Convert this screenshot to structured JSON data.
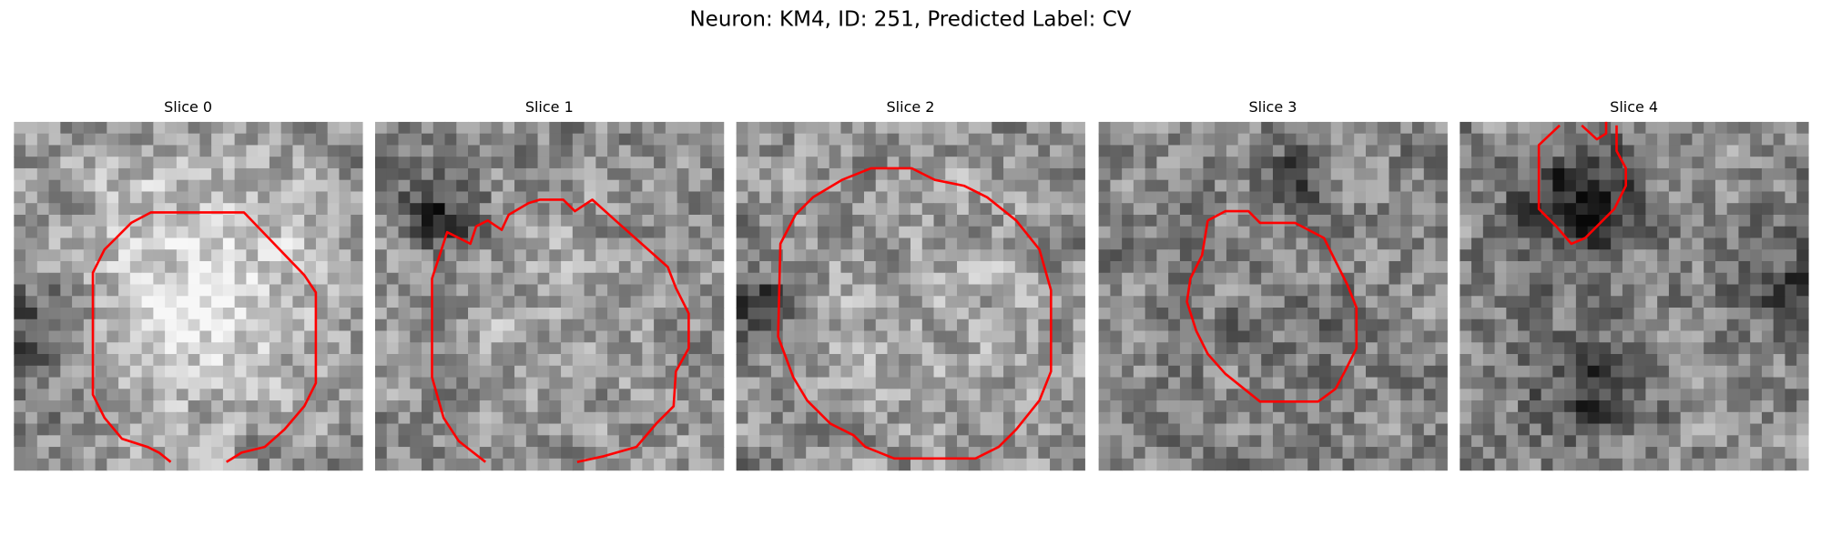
{
  "title": "Neuron: KM4, ID: 251, Predicted Label: CV",
  "panels": [
    {
      "title": "Slice 0"
    },
    {
      "title": "Slice 1"
    },
    {
      "title": "Slice 2"
    },
    {
      "title": "Slice 3"
    },
    {
      "title": "Slice 4"
    }
  ]
}
